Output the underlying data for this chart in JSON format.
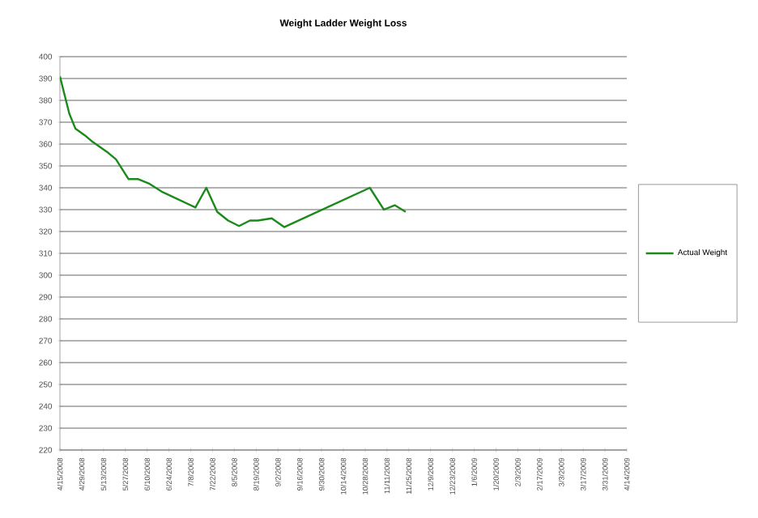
{
  "chart_data": {
    "type": "line",
    "title": "Weight Ladder Weight Loss",
    "x": [
      "2008-04-15",
      "2008-04-21",
      "2008-04-25",
      "2008-05-01",
      "2008-05-06",
      "2008-05-16",
      "2008-05-21",
      "2008-05-29",
      "2008-06-04",
      "2008-06-11",
      "2008-06-20",
      "2008-07-11",
      "2008-07-18",
      "2008-07-25",
      "2008-08-01",
      "2008-08-08",
      "2008-08-15",
      "2008-08-20",
      "2008-08-29",
      "2008-09-06",
      "2008-10-31",
      "2008-11-09",
      "2008-11-16",
      "2008-11-23"
    ],
    "series": [
      {
        "name": "Actual Weight",
        "color": "#1a8a1a",
        "values": [
          391,
          374,
          367,
          364,
          361,
          356,
          353,
          344,
          344,
          342,
          338,
          331,
          340,
          329,
          325,
          322.5,
          325,
          325,
          326,
          322,
          340,
          330,
          332,
          329
        ]
      }
    ],
    "xlim": [
      "2008-04-15",
      "2009-04-14"
    ],
    "xticks": [
      {
        "value": "2008-04-15",
        "label": "4/15/2008"
      },
      {
        "value": "2008-04-29",
        "label": "4/29/2008"
      },
      {
        "value": "2008-05-13",
        "label": "5/13/2008"
      },
      {
        "value": "2008-05-27",
        "label": "5/27/2008"
      },
      {
        "value": "2008-06-10",
        "label": "6/10/2008"
      },
      {
        "value": "2008-06-24",
        "label": "6/24/2008"
      },
      {
        "value": "2008-07-08",
        "label": "7/8/2008"
      },
      {
        "value": "2008-07-22",
        "label": "7/22/2008"
      },
      {
        "value": "2008-08-05",
        "label": "8/5/2008"
      },
      {
        "value": "2008-08-19",
        "label": "8/19/2008"
      },
      {
        "value": "2008-09-02",
        "label": "9/2/2008"
      },
      {
        "value": "2008-09-16",
        "label": "9/16/2008"
      },
      {
        "value": "2008-09-30",
        "label": "9/30/2008"
      },
      {
        "value": "2008-10-14",
        "label": "10/14/2008"
      },
      {
        "value": "2008-10-28",
        "label": "10/28/2008"
      },
      {
        "value": "2008-11-11",
        "label": "11/11/2008"
      },
      {
        "value": "2008-11-25",
        "label": "11/25/2008"
      },
      {
        "value": "2008-12-09",
        "label": "12/9/2008"
      },
      {
        "value": "2008-12-23",
        "label": "12/23/2008"
      },
      {
        "value": "2009-01-06",
        "label": "1/6/2009"
      },
      {
        "value": "2009-01-20",
        "label": "1/20/2009"
      },
      {
        "value": "2009-02-03",
        "label": "2/3/2009"
      },
      {
        "value": "2009-02-17",
        "label": "2/17/2009"
      },
      {
        "value": "2009-03-03",
        "label": "3/3/2009"
      },
      {
        "value": "2009-03-17",
        "label": "3/17/2009"
      },
      {
        "value": "2009-03-31",
        "label": "3/31/2009"
      },
      {
        "value": "2009-04-14",
        "label": "4/14/2009"
      }
    ],
    "ylim": [
      220,
      400
    ],
    "yticks": [
      220,
      230,
      240,
      250,
      260,
      270,
      280,
      290,
      300,
      310,
      320,
      330,
      340,
      350,
      360,
      370,
      380,
      390,
      400
    ],
    "grid": "y",
    "legend": "right"
  }
}
